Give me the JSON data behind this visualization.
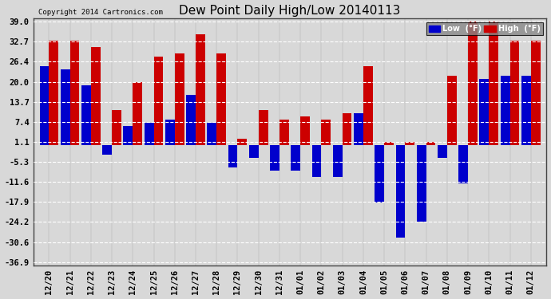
{
  "title": "Dew Point Daily High/Low 20140113",
  "copyright": "Copyright 2014 Cartronics.com",
  "legend_low": "Low  (°F)",
  "legend_high": "High  (°F)",
  "low_color": "#0000cc",
  "high_color": "#cc0000",
  "bg_color": "#d8d8d8",
  "grid_color": "#ffffff",
  "yticks": [
    39.0,
    32.7,
    26.4,
    20.0,
    13.7,
    7.4,
    1.1,
    -5.3,
    -11.6,
    -17.9,
    -24.2,
    -30.6,
    -36.9
  ],
  "ylim": [
    -38,
    40
  ],
  "dates": [
    "12/20",
    "12/21",
    "12/22",
    "12/23",
    "12/24",
    "12/25",
    "12/26",
    "12/27",
    "12/28",
    "12/29",
    "12/30",
    "12/31",
    "01/01",
    "01/02",
    "01/03",
    "01/04",
    "01/05",
    "01/06",
    "01/07",
    "01/08",
    "01/09",
    "01/10",
    "01/11",
    "01/12"
  ],
  "high_vals": [
    33,
    33,
    31,
    11,
    20,
    28,
    29,
    35,
    29,
    2,
    11,
    8,
    9,
    8,
    10,
    25,
    1,
    1,
    1,
    22,
    39,
    39,
    33,
    33
  ],
  "low_vals": [
    25,
    24,
    19,
    -3,
    6,
    7,
    8,
    16,
    7,
    -7,
    -4,
    -8,
    -8,
    -10,
    -10,
    10,
    -18,
    -29,
    -24,
    -4,
    -12,
    21,
    22,
    22
  ],
  "figwidth": 6.9,
  "figheight": 3.75,
  "dpi": 100
}
